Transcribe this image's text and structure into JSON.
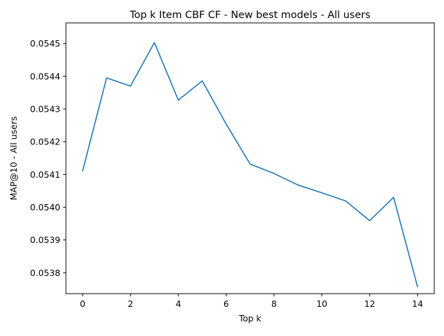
{
  "chart_data": {
    "type": "line",
    "title": "Top k Item CBF CF - New best models - All users",
    "xlabel": "Top k",
    "ylabel": "MAP@10 - All users",
    "xlim": [
      -0.7,
      14.7
    ],
    "ylim": [
      0.053736,
      0.054563
    ],
    "xticks": [
      0,
      2,
      4,
      6,
      8,
      10,
      12,
      14
    ],
    "yticks": [
      0.0538,
      0.0539,
      0.054,
      0.0541,
      0.0542,
      0.0543,
      0.0544,
      0.0545
    ],
    "ytick_labels": [
      "0.0538",
      "0.0539",
      "0.0540",
      "0.0541",
      "0.0542",
      "0.0543",
      "0.0544",
      "0.0545"
    ],
    "grid": false,
    "series": [
      {
        "color": "#1f77b4",
        "x": [
          0,
          1,
          2,
          3,
          4,
          5,
          6,
          7,
          8,
          9,
          10,
          11,
          12,
          13,
          14
        ],
        "y": [
          0.054111,
          0.054395,
          0.05437,
          0.054503,
          0.054327,
          0.054386,
          0.054254,
          0.054132,
          0.054103,
          0.054068,
          0.054044,
          0.054019,
          0.053959,
          0.05403,
          0.053757
        ]
      }
    ]
  }
}
